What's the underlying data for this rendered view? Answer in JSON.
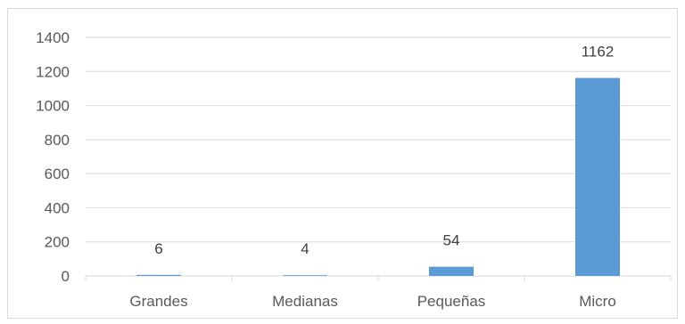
{
  "chart_data": {
    "type": "bar",
    "categories": [
      "Grandes",
      "Medianas",
      "Pequeñas",
      "Micro"
    ],
    "values": [
      6,
      4,
      54,
      1162
    ],
    "ylim": [
      0,
      1400
    ],
    "yticks": [
      0,
      200,
      400,
      600,
      800,
      1000,
      1200,
      1400
    ],
    "grid": true,
    "bar_color": "#5b9bd5",
    "data_labels": [
      "6",
      "4",
      "54",
      "1162"
    ]
  }
}
